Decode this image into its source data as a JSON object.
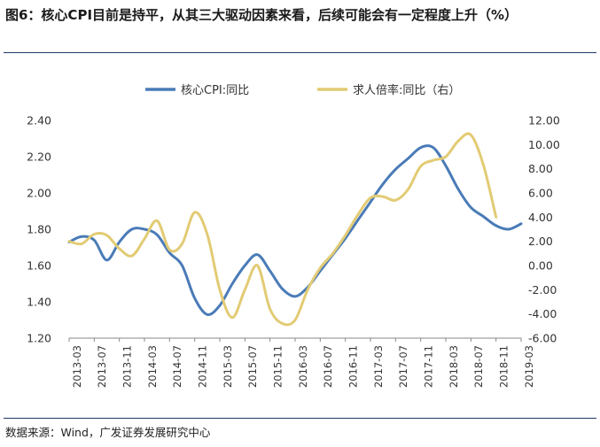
{
  "title": "图6：核心CPI目前是持平，从其三大驱动因素来看，后续可能会有一定程度上升（%）",
  "source": "数据来源：Wind，广发证券发展研究中心",
  "chart_data": {
    "type": "line",
    "x": [
      "2013-03",
      "2013-07",
      "2013-11",
      "2014-03",
      "2014-07",
      "2014-11",
      "2015-03",
      "2015-07",
      "2015-11",
      "2016-03",
      "2016-07",
      "2016-11",
      "2017-03",
      "2017-07",
      "2017-11",
      "2018-03",
      "2018-07",
      "2018-11",
      "2019-03"
    ],
    "x_ticks": [
      "2013-03",
      "2013-07",
      "2013-11",
      "2014-03",
      "2014-07",
      "2014-11",
      "2015-03",
      "2015-07",
      "2015-11",
      "2016-03",
      "2016-07",
      "2016-11",
      "2017-03",
      "2017-07",
      "2017-11",
      "2018-03",
      "2018-07",
      "2018-11",
      "2019-03"
    ],
    "y_left": {
      "ticks": [
        "2.40",
        "2.20",
        "2.00",
        "1.80",
        "1.60",
        "1.40",
        "1.20"
      ],
      "ylim": [
        1.2,
        2.4
      ]
    },
    "y_right": {
      "ticks": [
        "12.00",
        "10.00",
        "8.00",
        "6.00",
        "4.00",
        "2.00",
        "0.00",
        "-2.00",
        "-4.00",
        "-6.00"
      ],
      "ylim": [
        -6,
        12
      ]
    },
    "legend_position": "top",
    "series": [
      {
        "name": "核心CPI:同比",
        "axis": "left",
        "color": "#4a7bb7",
        "points": [
          [
            "2013-03",
            1.73
          ],
          [
            "2013-05",
            1.76
          ],
          [
            "2013-07",
            1.74
          ],
          [
            "2013-09",
            1.63
          ],
          [
            "2013-11",
            1.73
          ],
          [
            "2014-01",
            1.8
          ],
          [
            "2014-03",
            1.8
          ],
          [
            "2014-05",
            1.77
          ],
          [
            "2014-07",
            1.67
          ],
          [
            "2014-09",
            1.6
          ],
          [
            "2014-11",
            1.42
          ],
          [
            "2015-01",
            1.33
          ],
          [
            "2015-03",
            1.38
          ],
          [
            "2015-05",
            1.5
          ],
          [
            "2015-07",
            1.6
          ],
          [
            "2015-09",
            1.66
          ],
          [
            "2015-11",
            1.57
          ],
          [
            "2016-01",
            1.47
          ],
          [
            "2016-03",
            1.43
          ],
          [
            "2016-05",
            1.48
          ],
          [
            "2016-07",
            1.57
          ],
          [
            "2016-09",
            1.66
          ],
          [
            "2016-11",
            1.75
          ],
          [
            "2017-01",
            1.85
          ],
          [
            "2017-03",
            1.95
          ],
          [
            "2017-05",
            2.05
          ],
          [
            "2017-07",
            2.13
          ],
          [
            "2017-09",
            2.19
          ],
          [
            "2017-11",
            2.25
          ],
          [
            "2018-01",
            2.25
          ],
          [
            "2018-03",
            2.15
          ],
          [
            "2018-05",
            2.02
          ],
          [
            "2018-07",
            1.92
          ],
          [
            "2018-09",
            1.87
          ],
          [
            "2018-11",
            1.82
          ],
          [
            "2019-01",
            1.8
          ],
          [
            "2019-03",
            1.83
          ]
        ]
      },
      {
        "name": "求人倍率:同比（右）",
        "axis": "right",
        "color": "#e2cb74",
        "points": [
          [
            "2013-03",
            2.0
          ],
          [
            "2013-05",
            1.8
          ],
          [
            "2013-07",
            2.6
          ],
          [
            "2013-09",
            2.5
          ],
          [
            "2013-11",
            1.4
          ],
          [
            "2014-01",
            0.8
          ],
          [
            "2014-03",
            2.2
          ],
          [
            "2014-05",
            3.7
          ],
          [
            "2014-07",
            1.3
          ],
          [
            "2014-09",
            1.8
          ],
          [
            "2014-11",
            4.4
          ],
          [
            "2015-01",
            2.6
          ],
          [
            "2015-03",
            -2.0
          ],
          [
            "2015-05",
            -4.3
          ],
          [
            "2015-07",
            -2.0
          ],
          [
            "2015-09",
            0.0
          ],
          [
            "2015-11",
            -3.6
          ],
          [
            "2016-01",
            -4.8
          ],
          [
            "2016-03",
            -4.5
          ],
          [
            "2016-05",
            -2.0
          ],
          [
            "2016-07",
            -0.2
          ],
          [
            "2016-09",
            1.0
          ],
          [
            "2016-11",
            2.5
          ],
          [
            "2017-01",
            4.2
          ],
          [
            "2017-03",
            5.6
          ],
          [
            "2017-05",
            5.7
          ],
          [
            "2017-07",
            5.4
          ],
          [
            "2017-09",
            6.3
          ],
          [
            "2017-11",
            8.2
          ],
          [
            "2018-01",
            8.7
          ],
          [
            "2018-03",
            9.0
          ],
          [
            "2018-05",
            10.3
          ],
          [
            "2018-07",
            10.8
          ],
          [
            "2018-09",
            8.3
          ],
          [
            "2018-11",
            4.0
          ]
        ]
      }
    ]
  }
}
